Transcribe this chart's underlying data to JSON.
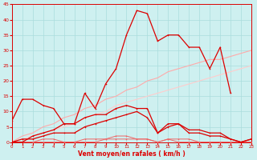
{
  "x": [
    0,
    1,
    2,
    3,
    4,
    5,
    6,
    7,
    8,
    9,
    10,
    11,
    12,
    13,
    14,
    15,
    16,
    17,
    18,
    19,
    20,
    21,
    22,
    23
  ],
  "line_peak": [
    7,
    14,
    14,
    12,
    11,
    6,
    6,
    16,
    11,
    19,
    24,
    35,
    43,
    42,
    33,
    35,
    35,
    31,
    31,
    24,
    31,
    16,
    null,
    null
  ],
  "line_mid": [
    0,
    0,
    2,
    3,
    4,
    6,
    6,
    8,
    9,
    9,
    11,
    12,
    11,
    11,
    3,
    6,
    6,
    4,
    4,
    3,
    3,
    1,
    0,
    1
  ],
  "line_low": [
    0,
    1,
    1,
    2,
    3,
    3,
    3,
    5,
    6,
    7,
    8,
    9,
    10,
    8,
    3,
    5,
    6,
    3,
    3,
    2,
    2,
    1,
    0,
    1
  ],
  "line_zero1": [
    0,
    0,
    0,
    1,
    1,
    0,
    0,
    1,
    1,
    1,
    2,
    2,
    1,
    1,
    0,
    1,
    1,
    1,
    0,
    0,
    0,
    0,
    0,
    0
  ],
  "line_zero2": [
    0,
    0,
    0,
    0,
    0,
    0,
    0,
    0,
    0,
    1,
    1,
    1,
    1,
    1,
    0,
    1,
    0,
    0,
    0,
    0,
    0,
    0,
    0,
    0
  ],
  "line_trend1": [
    0,
    2,
    3,
    5,
    6,
    8,
    9,
    11,
    12,
    14,
    15,
    17,
    18,
    20,
    21,
    23,
    24,
    25,
    26,
    27,
    27,
    28,
    29,
    30
  ],
  "line_trend2": [
    0,
    1,
    2,
    3,
    4,
    5,
    6,
    8,
    9,
    10,
    12,
    13,
    14,
    15,
    16,
    17,
    18,
    19,
    20,
    21,
    22,
    23,
    24,
    25
  ],
  "bg_color": "#cef0f0",
  "grid_color": "#aadddd",
  "dark_red": "#dd0000",
  "mid_red": "#ee6666",
  "light_red": "#ffaaaa",
  "very_light_red": "#ffcccc",
  "xlabel": "Vent moyen/en rafales ( km/h )",
  "ytick_vals": [
    0,
    5,
    10,
    15,
    20,
    25,
    30,
    35,
    40,
    45
  ],
  "xtick_vals": [
    0,
    1,
    2,
    3,
    4,
    5,
    6,
    7,
    8,
    9,
    10,
    11,
    12,
    13,
    14,
    15,
    16,
    17,
    18,
    19,
    20,
    21,
    22,
    23
  ]
}
